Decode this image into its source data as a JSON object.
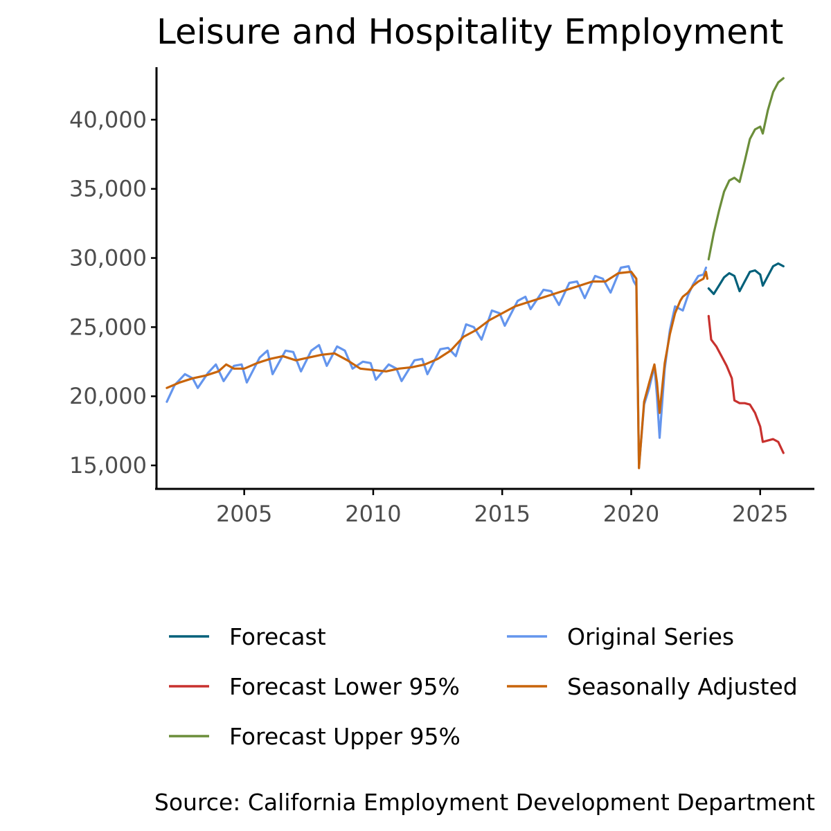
{
  "chart_data": {
    "type": "line",
    "title": "Leisure and Hospitality Employment",
    "caption": "Source: California Employment Development Department",
    "xlabel": "",
    "ylabel": "",
    "xlim": [
      2001.6,
      2027.1
    ],
    "ylim": [
      13300,
      43800
    ],
    "x_ticks": [
      2005,
      2010,
      2015,
      2020,
      2025
    ],
    "x_tick_labels": [
      "2005",
      "2010",
      "2015",
      "2020",
      "2025"
    ],
    "y_ticks": [
      15000,
      20000,
      25000,
      30000,
      35000,
      40000
    ],
    "y_tick_labels": [
      "15,000",
      "20,000",
      "25,000",
      "30,000",
      "35,000",
      "40,000"
    ],
    "grid": false,
    "legend_position": "bottom",
    "legend": [
      {
        "label": "Forecast",
        "color": "#00607a"
      },
      {
        "label": "Original Series",
        "color": "#6495ed"
      },
      {
        "label": "Forecast Lower 95%",
        "color": "#c8312e"
      },
      {
        "label": "Seasonally Adjusted",
        "color": "#c8640a"
      },
      {
        "label": "Forecast Upper 95%",
        "color": "#6b8e3a"
      }
    ],
    "series": [
      {
        "name": "Original Series",
        "color": "#6495ed",
        "points": [
          [
            2002.0,
            19600
          ],
          [
            2002.3,
            20800
          ],
          [
            2002.7,
            21600
          ],
          [
            2003.0,
            21300
          ],
          [
            2003.2,
            20600
          ],
          [
            2003.6,
            21700
          ],
          [
            2003.9,
            22300
          ],
          [
            2004.2,
            21100
          ],
          [
            2004.6,
            22200
          ],
          [
            2004.9,
            22300
          ],
          [
            2005.1,
            21000
          ],
          [
            2005.6,
            22800
          ],
          [
            2005.9,
            23300
          ],
          [
            2006.1,
            21600
          ],
          [
            2006.6,
            23300
          ],
          [
            2006.9,
            23200
          ],
          [
            2007.2,
            21800
          ],
          [
            2007.6,
            23300
          ],
          [
            2007.9,
            23700
          ],
          [
            2008.2,
            22200
          ],
          [
            2008.6,
            23600
          ],
          [
            2008.9,
            23300
          ],
          [
            2009.2,
            22000
          ],
          [
            2009.6,
            22500
          ],
          [
            2009.9,
            22400
          ],
          [
            2010.1,
            21200
          ],
          [
            2010.6,
            22300
          ],
          [
            2010.9,
            22000
          ],
          [
            2011.1,
            21100
          ],
          [
            2011.6,
            22600
          ],
          [
            2011.9,
            22700
          ],
          [
            2012.1,
            21600
          ],
          [
            2012.6,
            23400
          ],
          [
            2012.9,
            23500
          ],
          [
            2013.2,
            22900
          ],
          [
            2013.6,
            25200
          ],
          [
            2013.9,
            25000
          ],
          [
            2014.2,
            24100
          ],
          [
            2014.6,
            26200
          ],
          [
            2014.9,
            26000
          ],
          [
            2015.1,
            25100
          ],
          [
            2015.6,
            26900
          ],
          [
            2015.9,
            27200
          ],
          [
            2016.1,
            26300
          ],
          [
            2016.6,
            27700
          ],
          [
            2016.9,
            27600
          ],
          [
            2017.2,
            26600
          ],
          [
            2017.6,
            28200
          ],
          [
            2017.9,
            28300
          ],
          [
            2018.2,
            27100
          ],
          [
            2018.6,
            28700
          ],
          [
            2018.9,
            28500
          ],
          [
            2019.2,
            27500
          ],
          [
            2019.6,
            29300
          ],
          [
            2019.9,
            29400
          ],
          [
            2020.1,
            28300
          ],
          [
            2020.2,
            28000
          ],
          [
            2020.3,
            14900
          ],
          [
            2020.5,
            19400
          ],
          [
            2020.7,
            20600
          ],
          [
            2020.9,
            22200
          ],
          [
            2021.0,
            20000
          ],
          [
            2021.1,
            17000
          ],
          [
            2021.3,
            22000
          ],
          [
            2021.5,
            24800
          ],
          [
            2021.7,
            26500
          ],
          [
            2021.9,
            26300
          ],
          [
            2022.0,
            26200
          ],
          [
            2022.2,
            27300
          ],
          [
            2022.4,
            28100
          ],
          [
            2022.6,
            28700
          ],
          [
            2022.8,
            28800
          ],
          [
            2022.9,
            29300
          ]
        ]
      },
      {
        "name": "Seasonally Adjusted",
        "color": "#c8640a",
        "points": [
          [
            2002.0,
            20600
          ],
          [
            2002.5,
            21000
          ],
          [
            2003.0,
            21300
          ],
          [
            2003.5,
            21500
          ],
          [
            2004.0,
            21800
          ],
          [
            2004.3,
            22300
          ],
          [
            2004.6,
            22000
          ],
          [
            2005.0,
            22000
          ],
          [
            2005.5,
            22400
          ],
          [
            2006.0,
            22700
          ],
          [
            2006.5,
            22900
          ],
          [
            2007.0,
            22600
          ],
          [
            2007.5,
            22800
          ],
          [
            2008.0,
            23000
          ],
          [
            2008.5,
            23100
          ],
          [
            2009.0,
            22600
          ],
          [
            2009.5,
            22000
          ],
          [
            2010.0,
            21900
          ],
          [
            2010.5,
            21800
          ],
          [
            2011.0,
            22000
          ],
          [
            2011.5,
            22100
          ],
          [
            2012.0,
            22300
          ],
          [
            2012.5,
            22700
          ],
          [
            2013.0,
            23300
          ],
          [
            2013.5,
            24300
          ],
          [
            2014.0,
            24800
          ],
          [
            2014.5,
            25500
          ],
          [
            2015.0,
            26000
          ],
          [
            2015.5,
            26500
          ],
          [
            2016.0,
            26800
          ],
          [
            2016.5,
            27100
          ],
          [
            2017.0,
            27400
          ],
          [
            2017.5,
            27700
          ],
          [
            2018.0,
            28000
          ],
          [
            2018.5,
            28300
          ],
          [
            2019.0,
            28300
          ],
          [
            2019.5,
            28900
          ],
          [
            2020.0,
            29000
          ],
          [
            2020.2,
            28500
          ],
          [
            2020.3,
            14800
          ],
          [
            2020.5,
            19600
          ],
          [
            2020.7,
            21000
          ],
          [
            2020.9,
            22300
          ],
          [
            2021.0,
            21000
          ],
          [
            2021.1,
            18800
          ],
          [
            2021.3,
            22400
          ],
          [
            2021.5,
            24500
          ],
          [
            2021.7,
            26000
          ],
          [
            2021.9,
            26900
          ],
          [
            2022.0,
            27200
          ],
          [
            2022.2,
            27500
          ],
          [
            2022.4,
            28000
          ],
          [
            2022.6,
            28300
          ],
          [
            2022.8,
            28500
          ],
          [
            2022.9,
            29000
          ],
          [
            2022.95,
            28500
          ]
        ]
      },
      {
        "name": "Forecast",
        "color": "#00607a",
        "points": [
          [
            2023.0,
            27800
          ],
          [
            2023.2,
            27400
          ],
          [
            2023.4,
            28000
          ],
          [
            2023.6,
            28600
          ],
          [
            2023.8,
            28900
          ],
          [
            2024.0,
            28700
          ],
          [
            2024.2,
            27600
          ],
          [
            2024.4,
            28300
          ],
          [
            2024.6,
            29000
          ],
          [
            2024.8,
            29100
          ],
          [
            2025.0,
            28800
          ],
          [
            2025.1,
            28000
          ],
          [
            2025.3,
            28700
          ],
          [
            2025.5,
            29400
          ],
          [
            2025.7,
            29600
          ],
          [
            2025.9,
            29400
          ]
        ]
      },
      {
        "name": "Forecast Upper 95%",
        "color": "#6b8e3a",
        "points": [
          [
            2023.0,
            29900
          ],
          [
            2023.2,
            31800
          ],
          [
            2023.4,
            33400
          ],
          [
            2023.6,
            34800
          ],
          [
            2023.8,
            35600
          ],
          [
            2024.0,
            35800
          ],
          [
            2024.2,
            35500
          ],
          [
            2024.4,
            37000
          ],
          [
            2024.6,
            38600
          ],
          [
            2024.8,
            39300
          ],
          [
            2025.0,
            39500
          ],
          [
            2025.1,
            39000
          ],
          [
            2025.3,
            40700
          ],
          [
            2025.5,
            42000
          ],
          [
            2025.7,
            42700
          ],
          [
            2025.9,
            43000
          ]
        ]
      },
      {
        "name": "Forecast Lower 95%",
        "color": "#c8312e",
        "points": [
          [
            2023.0,
            25800
          ],
          [
            2023.1,
            24100
          ],
          [
            2023.3,
            23600
          ],
          [
            2023.5,
            22900
          ],
          [
            2023.7,
            22200
          ],
          [
            2023.9,
            21300
          ],
          [
            2024.0,
            19700
          ],
          [
            2024.2,
            19500
          ],
          [
            2024.4,
            19500
          ],
          [
            2024.6,
            19400
          ],
          [
            2024.8,
            18800
          ],
          [
            2025.0,
            17800
          ],
          [
            2025.1,
            16700
          ],
          [
            2025.3,
            16800
          ],
          [
            2025.5,
            16900
          ],
          [
            2025.7,
            16700
          ],
          [
            2025.9,
            15900
          ]
        ]
      }
    ]
  }
}
